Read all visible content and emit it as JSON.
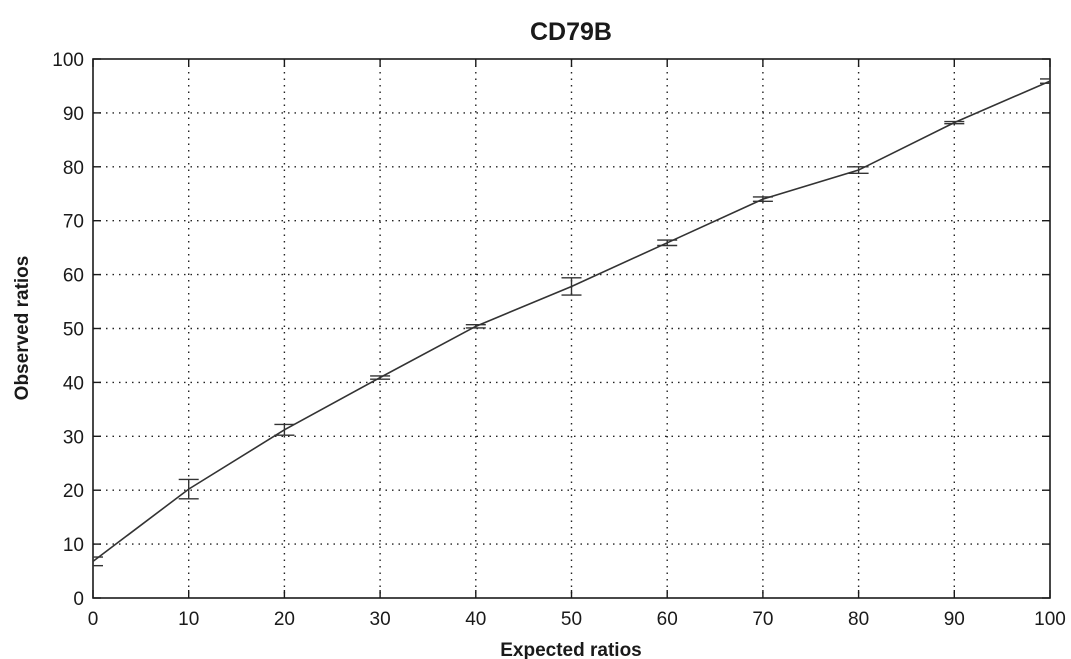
{
  "chart_data": {
    "type": "line",
    "title": "CD79B",
    "xlabel": "Expected ratios",
    "ylabel": "Observed ratios",
    "xlim": [
      0,
      100
    ],
    "ylim": [
      0,
      100
    ],
    "xticks": [
      0,
      10,
      20,
      30,
      40,
      50,
      60,
      70,
      80,
      90,
      100
    ],
    "yticks": [
      0,
      10,
      20,
      30,
      40,
      50,
      60,
      70,
      80,
      90,
      100
    ],
    "grid": true,
    "series": [
      {
        "x": [
          0,
          10,
          20,
          30,
          40,
          50,
          60,
          70,
          80,
          90,
          100
        ],
        "y": [
          6.8,
          20.2,
          31.2,
          40.9,
          50.4,
          57.8,
          65.9,
          74.0,
          79.4,
          88.2,
          95.9
        ],
        "error": [
          0.8,
          1.8,
          1.0,
          0.3,
          0.3,
          1.6,
          0.5,
          0.4,
          0.6,
          0.2,
          0.4
        ]
      }
    ]
  }
}
